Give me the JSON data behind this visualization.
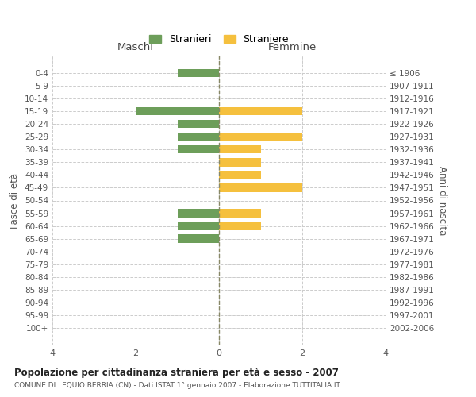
{
  "age_groups": [
    "0-4",
    "5-9",
    "10-14",
    "15-19",
    "20-24",
    "25-29",
    "30-34",
    "35-39",
    "40-44",
    "45-49",
    "50-54",
    "55-59",
    "60-64",
    "65-69",
    "70-74",
    "75-79",
    "80-84",
    "85-89",
    "90-94",
    "95-99",
    "100+"
  ],
  "birth_years": [
    "2002-2006",
    "1997-2001",
    "1992-1996",
    "1987-1991",
    "1982-1986",
    "1977-1981",
    "1972-1976",
    "1967-1971",
    "1962-1966",
    "1957-1961",
    "1952-1956",
    "1947-1951",
    "1942-1946",
    "1937-1941",
    "1932-1936",
    "1927-1931",
    "1922-1926",
    "1917-1921",
    "1912-1916",
    "1907-1911",
    "≤ 1906"
  ],
  "maschi": [
    1,
    0,
    0,
    2,
    1,
    1,
    1,
    0,
    0,
    0,
    0,
    1,
    1,
    1,
    0,
    0,
    0,
    0,
    0,
    0,
    0
  ],
  "femmine": [
    0,
    0,
    0,
    2,
    0,
    2,
    1,
    1,
    1,
    2,
    0,
    1,
    1,
    0,
    0,
    0,
    0,
    0,
    0,
    0,
    0
  ],
  "color_maschi": "#6d9e5a",
  "color_femmine": "#f5c03e",
  "title": "Popolazione per cittadinanza straniera per età e sesso - 2007",
  "subtitle": "COMUNE DI LEQUIO BERRIA (CN) - Dati ISTAT 1° gennaio 2007 - Elaborazione TUTTITALIA.IT",
  "xlabel_left": "Maschi",
  "xlabel_right": "Femmine",
  "ylabel": "Fasce di età",
  "ylabel_right": "Anni di nascita",
  "legend_stranieri": "Stranieri",
  "legend_straniere": "Straniere",
  "xlim": 4,
  "background_color": "#ffffff",
  "grid_color": "#cccccc"
}
